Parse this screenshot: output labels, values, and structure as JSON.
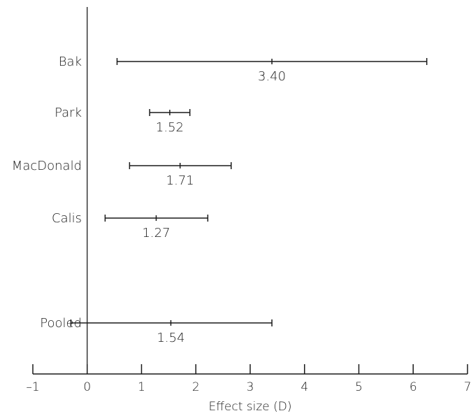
{
  "chart_data": {
    "type": "forest",
    "title": "",
    "xlabel": "Effect size (D)",
    "xlim": [
      -1,
      7
    ],
    "xticks": [
      -1,
      0,
      1,
      2,
      3,
      4,
      5,
      6,
      7
    ],
    "xtick_labels": [
      "–1",
      "0",
      "1",
      "2",
      "3",
      "4",
      "5",
      "6",
      "7"
    ],
    "reference_line": 0,
    "studies": [
      {
        "label": "Bak",
        "estimate": 3.4,
        "lower": 0.55,
        "upper": 6.25,
        "value_label": "3.40"
      },
      {
        "label": "Park",
        "estimate": 1.52,
        "lower": 1.15,
        "upper": 1.89,
        "value_label": "1.52"
      },
      {
        "label": "MacDonald",
        "estimate": 1.71,
        "lower": 0.78,
        "upper": 2.65,
        "value_label": "1.71"
      },
      {
        "label": "Calis",
        "estimate": 1.27,
        "lower": 0.33,
        "upper": 2.22,
        "value_label": "1.27"
      },
      {
        "label": "Pooled",
        "estimate": 1.54,
        "lower": -0.3,
        "upper": 3.4,
        "value_label": "1.54"
      }
    ]
  },
  "colors": {
    "ink": "#1a1a1a",
    "background": "#ffffff"
  }
}
